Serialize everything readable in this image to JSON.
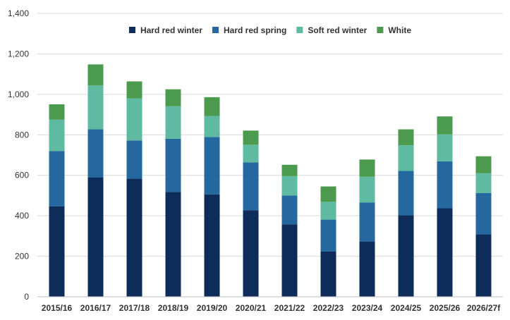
{
  "chart_data": {
    "type": "bar",
    "stacked": true,
    "categories": [
      "2015/16",
      "2016/17",
      "2017/18",
      "2018/19",
      "2019/20",
      "2020/21",
      "2021/22",
      "2022/23",
      "2023/24",
      "2024/25",
      "2025/26",
      "2026/27f"
    ],
    "series": [
      {
        "name": "Hard red winter",
        "color": "#0d2c5a",
        "values": [
          447,
          590,
          584,
          517,
          506,
          427,
          358,
          223,
          273,
          402,
          437,
          308
        ]
      },
      {
        "name": "Hard red spring",
        "color": "#24689f",
        "values": [
          273,
          237,
          188,
          264,
          283,
          237,
          142,
          158,
          193,
          220,
          232,
          204
        ]
      },
      {
        "name": "Soft red winter",
        "color": "#5fbaa2",
        "values": [
          155,
          217,
          208,
          160,
          104,
          87,
          96,
          88,
          127,
          126,
          133,
          98
        ]
      },
      {
        "name": "White",
        "color": "#4b9a4e",
        "values": [
          76,
          104,
          84,
          84,
          93,
          70,
          56,
          76,
          85,
          79,
          89,
          84
        ]
      }
    ],
    "yticks": [
      "0",
      "200",
      "400",
      "600",
      "800",
      "1,000",
      "1,200",
      "1,400"
    ],
    "ylim": [
      0,
      1400
    ],
    "grid": true,
    "legend_position": "top-center",
    "title": "",
    "xlabel": "",
    "ylabel": ""
  }
}
